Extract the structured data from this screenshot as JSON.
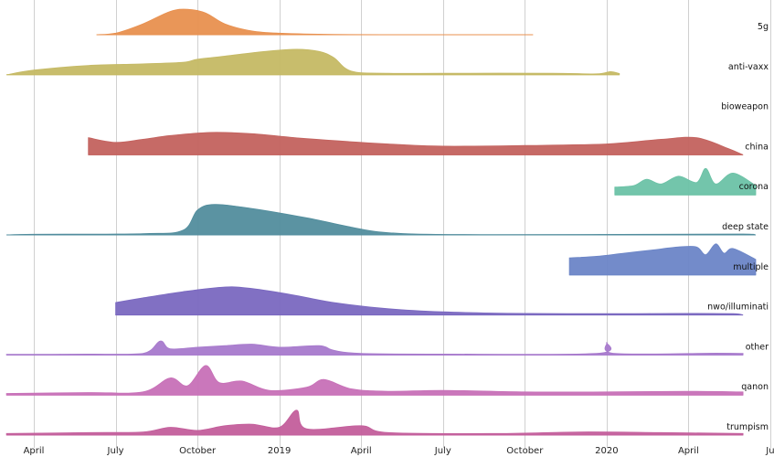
{
  "chart_data": {
    "type": "area",
    "subtype": "ridgeline",
    "title": "",
    "xlabel": "",
    "ylabel": "",
    "grid": true,
    "x_unit": "month",
    "xlim": [
      "2018-03",
      "2020-06"
    ],
    "x_ticks": [
      {
        "label": "April",
        "at": "2018-04"
      },
      {
        "label": "July",
        "at": "2018-07"
      },
      {
        "label": "October",
        "at": "2018-10"
      },
      {
        "label": "2019",
        "at": "2019-01"
      },
      {
        "label": "April",
        "at": "2019-04"
      },
      {
        "label": "July",
        "at": "2019-07"
      },
      {
        "label": "October",
        "at": "2019-10"
      },
      {
        "label": "2020",
        "at": "2020-01"
      },
      {
        "label": "April",
        "at": "2020-04"
      },
      {
        "label": "Ju",
        "at": "2020-07"
      }
    ],
    "relative_scale": "each row normalized to 1 = tallest peak in chart",
    "series": [
      {
        "name": "5g",
        "color": "#e8904f",
        "points": [
          [
            "2018-06-10",
            0
          ],
          [
            "2018-07-01",
            0.05
          ],
          [
            "2018-08-01",
            0.35
          ],
          [
            "2018-09-01",
            0.75
          ],
          [
            "2018-09-20",
            0.82
          ],
          [
            "2018-10-10",
            0.7
          ],
          [
            "2018-11-01",
            0.35
          ],
          [
            "2018-12-01",
            0.12
          ],
          [
            "2019-01-01",
            0.05
          ],
          [
            "2019-03-01",
            0.01
          ],
          [
            "2019-06-01",
            0
          ],
          [
            "2019-10-10",
            0
          ]
        ]
      },
      {
        "name": "anti-vaxx",
        "color": "#c5b964",
        "points": [
          [
            "2018-03-01",
            0
          ],
          [
            "2018-04-01",
            0.15
          ],
          [
            "2018-06-01",
            0.3
          ],
          [
            "2018-08-01",
            0.35
          ],
          [
            "2018-09-15",
            0.4
          ],
          [
            "2018-10-01",
            0.5
          ],
          [
            "2018-11-01",
            0.6
          ],
          [
            "2018-12-15",
            0.75
          ],
          [
            "2019-01-20",
            0.82
          ],
          [
            "2019-02-15",
            0.75
          ],
          [
            "2019-03-01",
            0.55
          ],
          [
            "2019-03-20",
            0.12
          ],
          [
            "2019-05-01",
            0.05
          ],
          [
            "2019-08-01",
            0.05
          ],
          [
            "2019-11-01",
            0.05
          ],
          [
            "2019-12-20",
            0.03
          ],
          [
            "2020-01-05",
            0.1
          ],
          [
            "2020-01-15",
            0.04
          ]
        ]
      },
      {
        "name": "bioweapon",
        "color": "#9d7ac8",
        "points": []
      },
      {
        "name": "china",
        "color": "#c3625e",
        "points": [
          [
            "2018-06-01",
            0.55
          ],
          [
            "2018-07-01",
            0.4
          ],
          [
            "2018-08-01",
            0.5
          ],
          [
            "2018-09-01",
            0.62
          ],
          [
            "2018-10-15",
            0.72
          ],
          [
            "2018-12-01",
            0.68
          ],
          [
            "2019-02-01",
            0.52
          ],
          [
            "2019-05-01",
            0.35
          ],
          [
            "2019-07-01",
            0.28
          ],
          [
            "2019-10-01",
            0.3
          ],
          [
            "2020-01-01",
            0.35
          ],
          [
            "2020-03-01",
            0.5
          ],
          [
            "2020-04-10",
            0.55
          ],
          [
            "2020-05-15",
            0.2
          ],
          [
            "2020-06-01",
            0
          ]
        ]
      },
      {
        "name": "corona",
        "color": "#6cc2a6",
        "points": [
          [
            "2020-01-10",
            0.25
          ],
          [
            "2020-02-01",
            0.3
          ],
          [
            "2020-02-15",
            0.5
          ],
          [
            "2020-03-01",
            0.35
          ],
          [
            "2020-03-20",
            0.6
          ],
          [
            "2020-04-10",
            0.4
          ],
          [
            "2020-04-20",
            0.85
          ],
          [
            "2020-05-01",
            0.35
          ],
          [
            "2020-05-20",
            0.7
          ],
          [
            "2020-06-15",
            0.3
          ]
        ]
      },
      {
        "name": "deep state",
        "color": "#528d9d",
        "points": [
          [
            "2018-03-01",
            0
          ],
          [
            "2018-04-01",
            0.02
          ],
          [
            "2018-08-01",
            0.04
          ],
          [
            "2018-09-15",
            0.15
          ],
          [
            "2018-10-01",
            0.8
          ],
          [
            "2018-10-20",
            0.98
          ],
          [
            "2018-12-01",
            0.85
          ],
          [
            "2019-02-01",
            0.55
          ],
          [
            "2019-03-20",
            0.25
          ],
          [
            "2019-04-20",
            0.1
          ],
          [
            "2019-06-01",
            0.03
          ],
          [
            "2019-09-01",
            0.01
          ],
          [
            "2020-03-01",
            0.02
          ],
          [
            "2020-06-01",
            0.03
          ],
          [
            "2020-06-15",
            0
          ]
        ]
      },
      {
        "name": "multiple",
        "color": "#6b85c7",
        "points": [
          [
            "2019-11-20",
            0.55
          ],
          [
            "2019-12-20",
            0.6
          ],
          [
            "2020-01-20",
            0.7
          ],
          [
            "2020-02-20",
            0.8
          ],
          [
            "2020-03-20",
            0.9
          ],
          [
            "2020-04-10",
            0.9
          ],
          [
            "2020-04-20",
            0.65
          ],
          [
            "2020-05-01",
            1.0
          ],
          [
            "2020-05-10",
            0.7
          ],
          [
            "2020-05-20",
            0.85
          ],
          [
            "2020-06-15",
            0.5
          ]
        ]
      },
      {
        "name": "nwo/illuminati",
        "color": "#7a68c0",
        "points": [
          [
            "2018-07-01",
            0.4
          ],
          [
            "2018-08-01",
            0.55
          ],
          [
            "2018-09-15",
            0.75
          ],
          [
            "2018-11-01",
            0.9
          ],
          [
            "2018-12-01",
            0.85
          ],
          [
            "2019-01-15",
            0.65
          ],
          [
            "2019-03-01",
            0.4
          ],
          [
            "2019-05-01",
            0.2
          ],
          [
            "2019-07-01",
            0.1
          ],
          [
            "2019-10-01",
            0.05
          ],
          [
            "2020-01-01",
            0.04
          ],
          [
            "2020-04-01",
            0.05
          ],
          [
            "2020-05-20",
            0.04
          ],
          [
            "2020-06-01",
            0
          ]
        ]
      },
      {
        "name": "other",
        "color": "#a779cc",
        "points": [
          [
            "2018-03-01",
            0.02
          ],
          [
            "2018-06-01",
            0.03
          ],
          [
            "2018-08-01",
            0.05
          ],
          [
            "2018-08-20",
            0.45
          ],
          [
            "2018-09-01",
            0.2
          ],
          [
            "2018-10-01",
            0.25
          ],
          [
            "2018-11-01",
            0.3
          ],
          [
            "2018-12-01",
            0.35
          ],
          [
            "2019-01-01",
            0.25
          ],
          [
            "2019-02-15",
            0.3
          ],
          [
            "2019-03-01",
            0.15
          ],
          [
            "2019-04-01",
            0.05
          ],
          [
            "2019-07-01",
            0.03
          ],
          [
            "2019-12-20",
            0.05
          ],
          [
            "2020-01-01",
            0.4
          ],
          [
            "2020-01-10",
            0.05
          ],
          [
            "2020-05-01",
            0.06
          ],
          [
            "2020-06-01",
            0.05
          ]
        ]
      },
      {
        "name": "qanon",
        "color": "#c770b7",
        "points": [
          [
            "2018-03-01",
            0.05
          ],
          [
            "2018-06-01",
            0.08
          ],
          [
            "2018-08-01",
            0.1
          ],
          [
            "2018-09-01",
            0.55
          ],
          [
            "2018-09-20",
            0.3
          ],
          [
            "2018-10-10",
            0.95
          ],
          [
            "2018-10-25",
            0.4
          ],
          [
            "2018-11-20",
            0.45
          ],
          [
            "2018-12-20",
            0.15
          ],
          [
            "2019-02-01",
            0.25
          ],
          [
            "2019-02-20",
            0.5
          ],
          [
            "2019-03-20",
            0.2
          ],
          [
            "2019-05-01",
            0.12
          ],
          [
            "2019-07-01",
            0.15
          ],
          [
            "2019-10-01",
            0.1
          ],
          [
            "2020-01-01",
            0.1
          ],
          [
            "2020-04-01",
            0.12
          ],
          [
            "2020-06-01",
            0.1
          ]
        ]
      },
      {
        "name": "trumpism",
        "color": "#c35e9b",
        "points": [
          [
            "2018-03-01",
            0.05
          ],
          [
            "2018-06-01",
            0.08
          ],
          [
            "2018-08-01",
            0.1
          ],
          [
            "2018-09-01",
            0.25
          ],
          [
            "2018-10-01",
            0.15
          ],
          [
            "2018-11-01",
            0.3
          ],
          [
            "2018-12-01",
            0.35
          ],
          [
            "2019-01-01",
            0.25
          ],
          [
            "2019-01-20",
            0.8
          ],
          [
            "2019-02-01",
            0.2
          ],
          [
            "2019-04-01",
            0.3
          ],
          [
            "2019-05-01",
            0.08
          ],
          [
            "2019-09-01",
            0.05
          ],
          [
            "2019-12-01",
            0.1
          ],
          [
            "2020-03-01",
            0.08
          ],
          [
            "2020-06-01",
            0.05
          ]
        ]
      }
    ]
  }
}
